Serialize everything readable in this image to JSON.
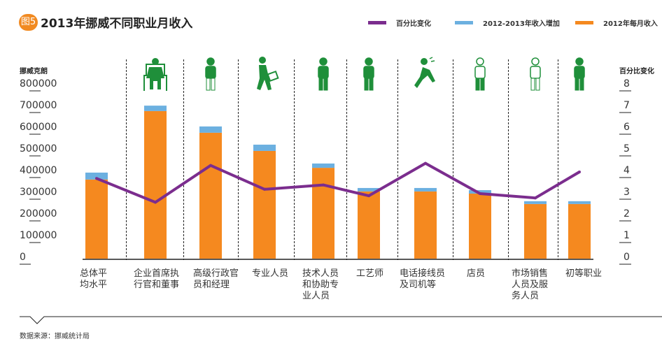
{
  "header": {
    "badge": "图5",
    "title": "2013年挪威不同职业月收入"
  },
  "legend": [
    {
      "label": "百分比变化",
      "color": "#7b2d8e"
    },
    {
      "label": "2012-2013年收入增加",
      "color": "#6cb0e0"
    },
    {
      "label": "2012年每月收入",
      "color": "#f5891f"
    }
  ],
  "axes": {
    "left_title": "挪威克朗",
    "right_title": "百分比变化",
    "left_ticks": [
      "800000",
      "700000",
      "600000",
      "500000",
      "400000",
      "300000",
      "200000",
      "100000",
      "0"
    ],
    "right_ticks": [
      "8",
      "7",
      "6",
      "5",
      "4",
      "3",
      "2",
      "1",
      "0"
    ]
  },
  "icons": [
    "seated-executive-icon",
    "manager-icon",
    "walking-professional-icon",
    "technician-icon",
    "craftsman-icon",
    "running-operator-icon",
    "shop-assistant-icon",
    "sales-service-icon",
    "elementary-worker-icon"
  ],
  "source": "数据来源：挪威统计局",
  "chart_data": {
    "type": "bar",
    "title": "2013年挪威不同职业月收入",
    "categories": [
      "总体平\n均水平",
      "企业首席执\n行官和董事",
      "高级行政官\n员和经理",
      "专业人员",
      "技术人员\n和协助专\n业人员",
      "工艺师",
      "电话接线员\n及司机等",
      "店员",
      "市场销售\n人员及服\n务人员",
      "初等职业"
    ],
    "series": [
      {
        "name": "2012年每月收入",
        "type": "bar",
        "stack": "income",
        "axis": "left",
        "values": [
          365000,
          681000,
          581000,
          497000,
          419000,
          310000,
          310000,
          300000,
          252000,
          252000
        ]
      },
      {
        "name": "2012-2013年收入增加",
        "type": "bar",
        "stack": "income",
        "axis": "left",
        "values": [
          32000,
          25000,
          29000,
          29000,
          20000,
          16000,
          16000,
          16000,
          13000,
          13000
        ]
      },
      {
        "name": "百分比变化",
        "type": "line",
        "axis": "right",
        "values": [
          3.7,
          2.6,
          4.3,
          3.2,
          3.4,
          2.9,
          4.4,
          3.0,
          2.8,
          4.0
        ]
      }
    ],
    "ylabel": "挪威克朗",
    "y2label": "百分比变化",
    "ylim": [
      0,
      800000
    ],
    "y2lim": [
      0,
      8
    ],
    "grid": false,
    "legend_position": "top-right"
  }
}
